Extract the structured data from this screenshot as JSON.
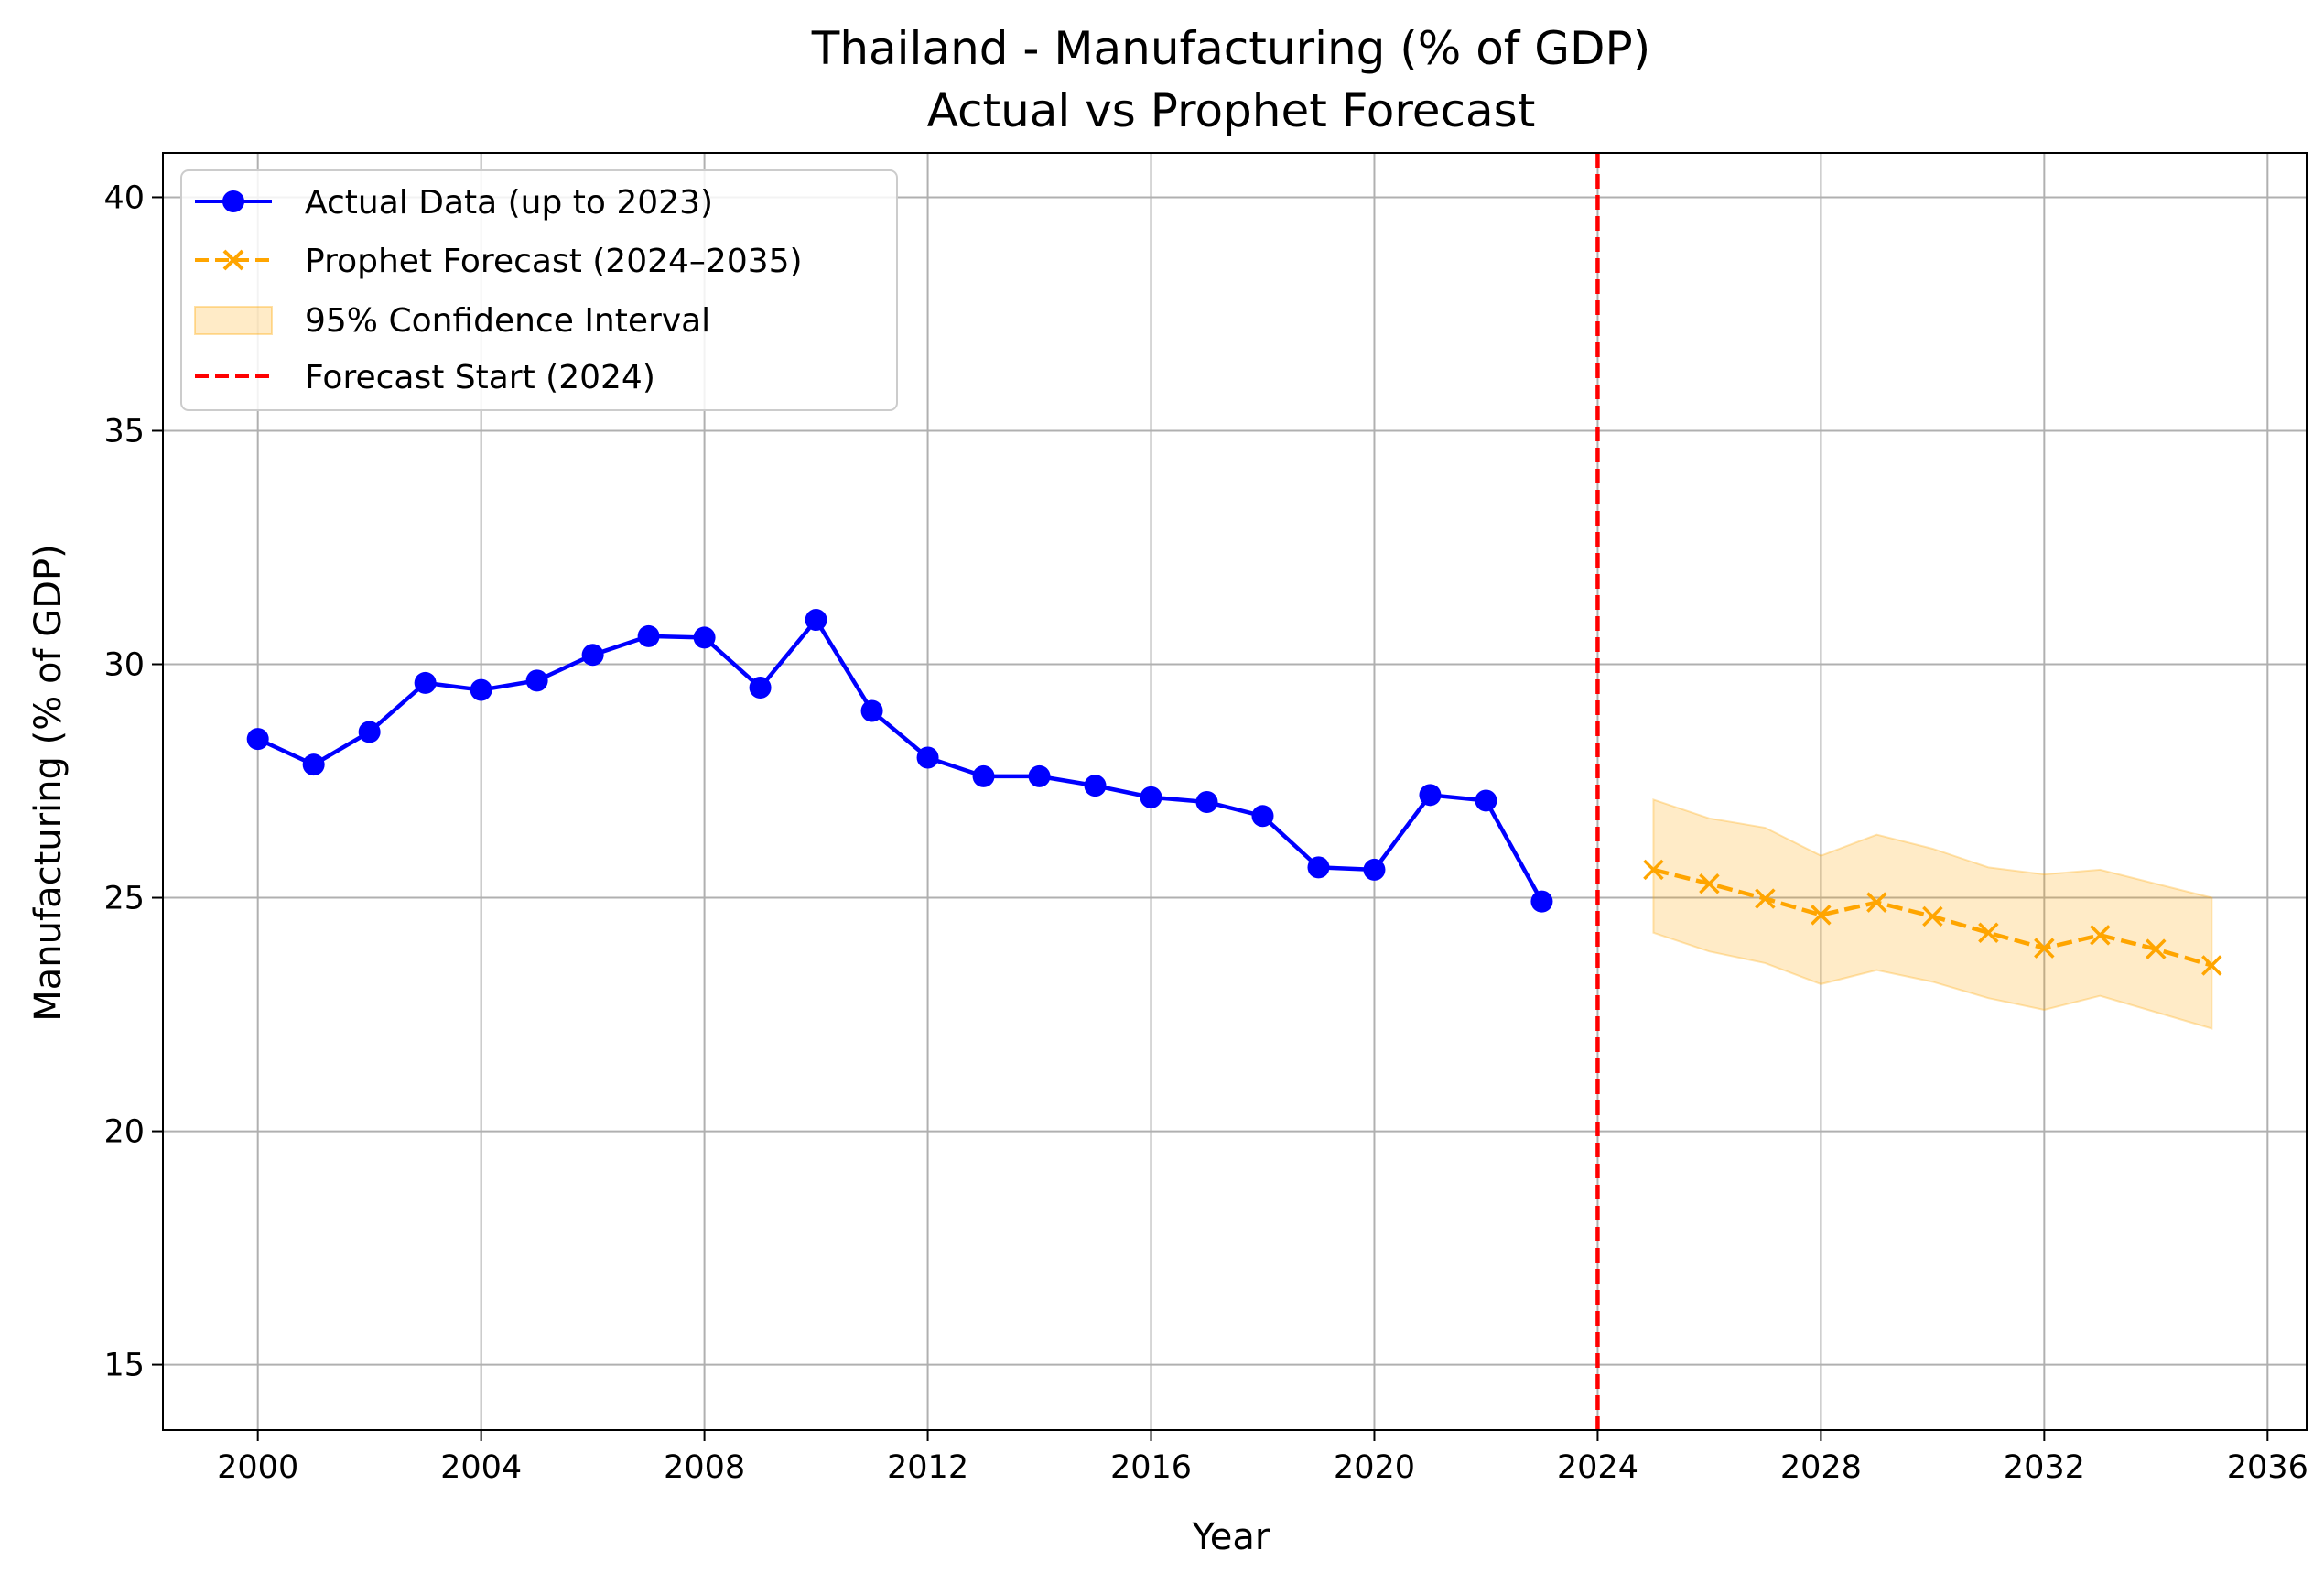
{
  "chart_data": {
    "type": "line",
    "title": "Thailand - Manufacturing (% of GDP)",
    "subtitle": "Actual vs Prophet Forecast",
    "xlabel": "Year",
    "ylabel": "Manufacturing (% of GDP)",
    "xlim": [
      1998.3,
      2036.7
    ],
    "ylim": [
      13.6,
      40.95
    ],
    "x_ticks": [
      2000,
      2004,
      2008,
      2012,
      2016,
      2020,
      2024,
      2028,
      2032,
      2036
    ],
    "y_ticks": [
      15,
      20,
      25,
      30,
      35,
      40
    ],
    "grid": true,
    "legend_position": "top-left",
    "series": [
      {
        "name": "Actual Data (up to 2023)",
        "color": "#0000ff",
        "style": "solid",
        "marker": "circle",
        "x": [
          2000,
          2001,
          2002,
          2003,
          2004,
          2005,
          2006,
          2007,
          2008,
          2009,
          2010,
          2011,
          2012,
          2013,
          2014,
          2015,
          2016,
          2017,
          2018,
          2019,
          2020,
          2021,
          2022,
          2023
        ],
        "y": [
          28.4,
          27.85,
          28.55,
          29.6,
          29.45,
          29.65,
          30.2,
          30.6,
          30.57,
          29.5,
          30.95,
          29.0,
          28.0,
          27.6,
          27.6,
          27.4,
          27.15,
          27.05,
          26.75,
          25.65,
          25.6,
          27.2,
          27.08,
          24.92
        ]
      },
      {
        "name": "Prophet Forecast (2024–2035)",
        "color": "#ffa500",
        "style": "dashed",
        "marker": "x",
        "x": [
          2025,
          2026,
          2027,
          2028,
          2029,
          2030,
          2031,
          2032,
          2033,
          2034,
          2035
        ],
        "y": [
          25.6,
          25.3,
          24.98,
          24.63,
          24.9,
          24.6,
          24.25,
          23.92,
          24.2,
          23.9,
          23.55
        ]
      }
    ],
    "confidence_interval": {
      "name": "95% Confidence Interval",
      "color": "#ffa500",
      "opacity": 0.22,
      "x": [
        2025,
        2026,
        2027,
        2028,
        2029,
        2030,
        2031,
        2032,
        2033,
        2034,
        2035
      ],
      "lower": [
        24.25,
        23.85,
        23.6,
        23.15,
        23.45,
        23.2,
        22.85,
        22.6,
        22.9,
        22.55,
        22.2
      ],
      "upper": [
        27.1,
        26.7,
        26.5,
        25.9,
        26.35,
        26.05,
        25.65,
        25.5,
        25.6,
        25.3,
        25.0
      ]
    },
    "vline": {
      "name": "Forecast Start (2024)",
      "x": 2024,
      "color": "#ff0000",
      "style": "dashed"
    }
  }
}
